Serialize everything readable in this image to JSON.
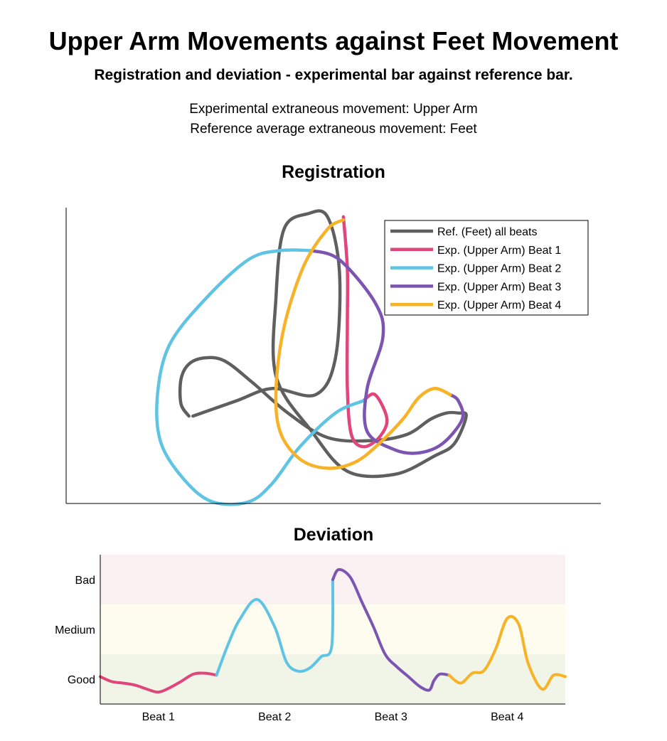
{
  "header": {
    "title": "Upper Arm Movements against Feet Movement",
    "subtitle": "Registration and deviation - experimental bar against reference bar.",
    "info_line_1": "Experimental extraneous movement: Upper Arm",
    "info_line_2": "Reference average extraneous movement: Feet"
  },
  "colors": {
    "reference": "#5f5f5f",
    "beat1": "#e0457b",
    "beat2": "#5fc4e4",
    "beat3": "#7c55b3",
    "beat4": "#f7b228",
    "band_bad": "#f9f0f2",
    "band_medium": "#fdfcef",
    "band_good": "#f0f5e8"
  },
  "chart_data": [
    {
      "type": "line",
      "title": "Registration",
      "xlabel": "",
      "ylabel": "",
      "axes_ticks": "none",
      "grid": false,
      "legend_position": "top-right",
      "legend": [
        "Ref. (Feet) all beats",
        "Exp. (Upper Arm) Beat 1",
        "Exp. (Upper Arm) Beat 2",
        "Exp. (Upper Arm) Beat 3",
        "Exp. (Upper Arm) Beat 4"
      ],
      "series": [
        {
          "name": "Ref. (Feet) all beats",
          "color_key": "reference",
          "points": [
            [
              3.1,
              1.5
            ],
            [
              2.9,
              1.9
            ],
            [
              2.9,
              2.7
            ],
            [
              3.1,
              3.2
            ],
            [
              3.5,
              3.4
            ],
            [
              4.0,
              3.3
            ],
            [
              4.7,
              2.6
            ],
            [
              5.6,
              1.6
            ],
            [
              6.6,
              0.8
            ],
            [
              7.7,
              0.7
            ],
            [
              8.6,
              0.9
            ],
            [
              9.2,
              1.4
            ],
            [
              9.6,
              1.6
            ],
            [
              9.9,
              1.6
            ],
            [
              10.1,
              1.5
            ],
            [
              9.8,
              0.6
            ],
            [
              9.3,
              0.2
            ],
            [
              8.3,
              -0.4
            ],
            [
              7.1,
              -0.3
            ],
            [
              6.2,
              1.0
            ],
            [
              5.3,
              2.8
            ],
            [
              5.3,
              5.4
            ],
            [
              5.5,
              7.6
            ],
            [
              6.1,
              8.1
            ],
            [
              6.6,
              8.0
            ],
            [
              6.9,
              6.2
            ],
            [
              6.8,
              3.4
            ],
            [
              6.3,
              2.2
            ],
            [
              5.2,
              2.4
            ],
            [
              4.3,
              2.0
            ],
            [
              3.2,
              1.5
            ]
          ]
        },
        {
          "name": "Exp. (Upper Arm) Beat 1",
          "color_key": "beat1",
          "points": [
            [
              7.0,
              8.0
            ],
            [
              7.1,
              6.3
            ],
            [
              7.1,
              4.6
            ],
            [
              7.1,
              2.4
            ],
            [
              7.2,
              0.9
            ],
            [
              7.5,
              0.5
            ],
            [
              7.9,
              0.8
            ],
            [
              8.1,
              1.4
            ],
            [
              7.8,
              2.2
            ],
            [
              7.5,
              2.0
            ]
          ]
        },
        {
          "name": "Exp. (Upper Arm) Beat 2",
          "color_key": "beat2",
          "points": [
            [
              7.5,
              2.0
            ],
            [
              6.8,
              1.6
            ],
            [
              5.9,
              0.5
            ],
            [
              5.2,
              -0.7
            ],
            [
              4.6,
              -1.3
            ],
            [
              3.7,
              -1.3
            ],
            [
              3.0,
              -0.6
            ],
            [
              2.4,
              0.6
            ],
            [
              2.3,
              2.1
            ],
            [
              2.6,
              3.8
            ],
            [
              3.5,
              5.3
            ],
            [
              4.6,
              6.6
            ],
            [
              5.4,
              6.9
            ],
            [
              6.2,
              6.9
            ]
          ]
        },
        {
          "name": "Exp. (Upper Arm) Beat 3",
          "color_key": "beat3",
          "points": [
            [
              6.2,
              6.9
            ],
            [
              6.9,
              6.6
            ],
            [
              7.8,
              5.2
            ],
            [
              8.0,
              4.1
            ],
            [
              7.6,
              2.4
            ],
            [
              7.6,
              1.0
            ],
            [
              8.3,
              0.4
            ],
            [
              8.9,
              0.3
            ],
            [
              9.5,
              0.6
            ],
            [
              10.0,
              1.4
            ],
            [
              9.9,
              2.0
            ],
            [
              9.7,
              2.2
            ]
          ]
        },
        {
          "name": "Exp. (Upper Arm) Beat 4",
          "color_key": "beat4",
          "points": [
            [
              9.7,
              2.2
            ],
            [
              9.3,
              2.4
            ],
            [
              8.9,
              2.1
            ],
            [
              8.5,
              1.4
            ],
            [
              7.9,
              0.6
            ],
            [
              7.3,
              0.0
            ],
            [
              6.6,
              -0.2
            ],
            [
              5.9,
              0.1
            ],
            [
              5.4,
              1.0
            ],
            [
              5.3,
              2.4
            ],
            [
              5.5,
              4.4
            ],
            [
              6.0,
              6.4
            ],
            [
              6.6,
              7.6
            ],
            [
              7.0,
              7.9
            ]
          ]
        }
      ]
    },
    {
      "type": "line",
      "title": "Deviation",
      "xlabel": "",
      "ylabel": "",
      "categories": [
        "Beat 1",
        "Beat 2",
        "Beat 3",
        "Beat 4"
      ],
      "y_categories": [
        "Good",
        "Medium",
        "Bad"
      ],
      "ylim": [
        0,
        3
      ],
      "xlim": [
        0,
        4
      ],
      "grid": false,
      "series": [
        {
          "name": "Beat 1",
          "color_key": "beat1",
          "x": [
            0,
            0.1,
            0.2,
            0.3,
            0.4,
            0.5,
            0.6,
            0.7,
            0.8,
            0.9,
            1.0
          ],
          "values": [
            0.55,
            0.45,
            0.42,
            0.38,
            0.3,
            0.24,
            0.33,
            0.46,
            0.6,
            0.62,
            0.58
          ]
        },
        {
          "name": "Beat 2",
          "color_key": "beat2",
          "x": [
            1.0,
            1.1,
            1.2,
            1.35,
            1.5,
            1.6,
            1.7,
            1.8,
            1.9,
            1.99,
            2.0
          ],
          "values": [
            0.58,
            1.2,
            1.7,
            2.1,
            1.55,
            0.85,
            0.66,
            0.72,
            0.95,
            1.15,
            2.5
          ]
        },
        {
          "name": "Beat 3",
          "color_key": "beat3",
          "x": [
            2.0,
            2.05,
            2.15,
            2.25,
            2.35,
            2.45,
            2.55,
            2.65,
            2.75,
            2.83,
            2.87,
            2.92,
            3.0
          ],
          "values": [
            2.5,
            2.7,
            2.55,
            2.05,
            1.55,
            1.0,
            0.75,
            0.55,
            0.35,
            0.28,
            0.47,
            0.6,
            0.58
          ]
        },
        {
          "name": "Beat 4",
          "color_key": "beat4",
          "x": [
            3.0,
            3.1,
            3.2,
            3.3,
            3.4,
            3.5,
            3.6,
            3.68,
            3.8,
            3.9,
            4.0
          ],
          "values": [
            0.58,
            0.42,
            0.62,
            0.67,
            1.1,
            1.72,
            1.6,
            0.82,
            0.3,
            0.58,
            0.55
          ]
        }
      ]
    }
  ]
}
